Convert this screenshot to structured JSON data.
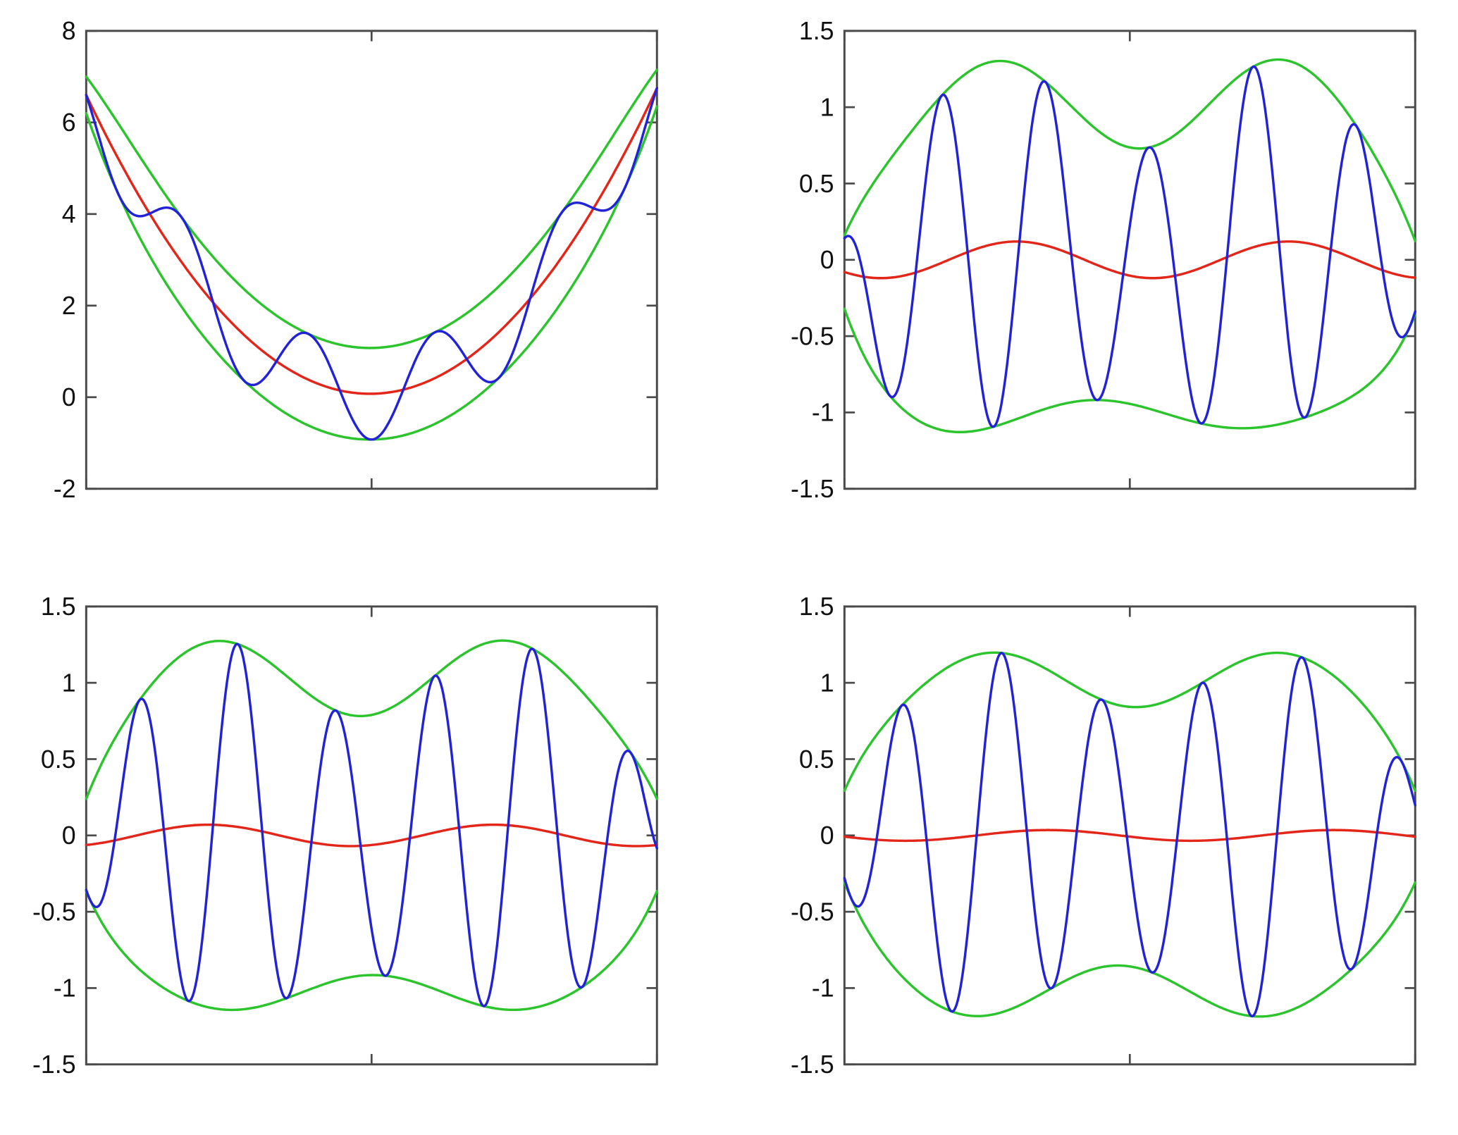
{
  "figure": {
    "background": "#ffffff",
    "axis_color": "#4a4a4a",
    "tick_label_color": "#111111",
    "description": "2x2 grid of MATLAB-style plots of an oscillatory signal (blue) with upper/lower spline envelopes (green) and local mean (red), as in empirical mode decomposition sifting steps"
  },
  "chart_data": [
    {
      "id": "top-left",
      "type": "line",
      "title": "",
      "xlabel": "",
      "ylabel": "",
      "xlim": [
        0,
        1
      ],
      "ylim": [
        -2,
        8
      ],
      "ytick_values": [
        8,
        6,
        4,
        2,
        0,
        -2
      ],
      "ytick_labels": [
        "8",
        "6",
        "4",
        "2",
        "0",
        "-2"
      ],
      "xtick_positions": [
        0,
        0.5,
        1
      ],
      "grid": false,
      "legend": null,
      "colors": {
        "signal": "#2222d6",
        "envelope": "#2cc42c",
        "mean": "#e3261a"
      },
      "series_names": [
        "signal",
        "upper envelope",
        "lower envelope",
        "local mean"
      ],
      "model": {
        "mean_terms": [
          {
            "type": "parab",
            "a": 6.6
          },
          {
            "type": "lin",
            "a": 0.15
          }
        ],
        "amp_terms": [
          {
            "type": "const",
            "a": 1.0
          },
          {
            "type": "pow8",
            "a": -0.6
          }
        ],
        "carrier": {
          "f": 4.5,
          "phase": 1.5708
        }
      }
    },
    {
      "id": "top-right",
      "type": "line",
      "title": "",
      "xlabel": "",
      "ylabel": "",
      "xlim": [
        0,
        1
      ],
      "ylim": [
        -1.5,
        1.5
      ],
      "ytick_values": [
        1.5,
        1,
        0.5,
        0,
        -0.5,
        -1,
        -1.5
      ],
      "ytick_labels": [
        "1.5",
        "1",
        "0.5",
        "0",
        "-0.5",
        "-1",
        "-1.5"
      ],
      "xtick_positions": [
        0,
        0.5,
        1
      ],
      "grid": false,
      "legend": null,
      "colors": {
        "signal": "#2222d6",
        "envelope": "#2cc42c",
        "mean": "#e3261a"
      },
      "series_names": [
        "signal",
        "upper envelope",
        "lower envelope",
        "local mean"
      ],
      "model": {
        "mean_terms": [
          {
            "type": "cos",
            "a": 0.12,
            "f": 2.1,
            "p": 2.3
          }
        ],
        "amp_terms": [
          {
            "type": "const",
            "a": 1.02
          },
          {
            "type": "cos",
            "a": 0.18,
            "f": 2.0,
            "p": 3.1416
          },
          {
            "type": "pow8",
            "a": -0.6
          }
        ],
        "carrier": {
          "f": 5.5,
          "phase": 0.4
        }
      }
    },
    {
      "id": "bottom-left",
      "type": "line",
      "title": "",
      "xlabel": "",
      "ylabel": "",
      "xlim": [
        0,
        1
      ],
      "ylim": [
        -1.5,
        1.5
      ],
      "ytick_values": [
        1.5,
        1,
        0.5,
        0,
        -0.5,
        -1,
        -1.5
      ],
      "ytick_labels": [
        "1.5",
        "1",
        "0.5",
        "0",
        "-0.5",
        "-1",
        "-1.5"
      ],
      "xtick_positions": [
        0,
        0.5,
        1
      ],
      "grid": false,
      "legend": null,
      "colors": {
        "signal": "#2222d6",
        "envelope": "#2cc42c",
        "mean": "#e3261a"
      },
      "series_names": [
        "signal",
        "upper envelope",
        "lower envelope",
        "local mean"
      ],
      "model": {
        "mean_terms": [
          {
            "type": "cos",
            "a": 0.07,
            "f": 2.0,
            "p": 3.6
          }
        ],
        "amp_terms": [
          {
            "type": "const",
            "a": 1.03
          },
          {
            "type": "cos",
            "a": 0.18,
            "f": 2.0,
            "p": 3.3
          },
          {
            "type": "pow8",
            "a": -0.55
          }
        ],
        "carrier": {
          "f": 5.8,
          "phase": 2.9
        }
      }
    },
    {
      "id": "bottom-right",
      "type": "line",
      "title": "",
      "xlabel": "",
      "ylabel": "",
      "xlim": [
        0,
        1
      ],
      "ylim": [
        -1.5,
        1.5
      ],
      "ytick_values": [
        1.5,
        1,
        0.5,
        0,
        -0.5,
        -1,
        -1.5
      ],
      "ytick_labels": [
        "1.5",
        "1",
        "0.5",
        "0",
        "-0.5",
        "-1",
        "-1.5"
      ],
      "xtick_positions": [
        0,
        0.5,
        1
      ],
      "grid": false,
      "legend": null,
      "colors": {
        "signal": "#2222d6",
        "envelope": "#2cc42c",
        "mean": "#e3261a"
      },
      "series_names": [
        "signal",
        "upper envelope",
        "lower envelope",
        "local mean"
      ],
      "model": {
        "mean_terms": [
          {
            "type": "cos",
            "a": 0.035,
            "f": 2.0,
            "p": 1.8
          }
        ],
        "amp_terms": [
          {
            "type": "const",
            "a": 1.02
          },
          {
            "type": "cos",
            "a": 0.17,
            "f": 2.0,
            "p": 3.2
          },
          {
            "type": "pow8",
            "a": -0.55
          }
        ],
        "carrier": {
          "f": 5.7,
          "phase": 2.7
        }
      }
    }
  ]
}
